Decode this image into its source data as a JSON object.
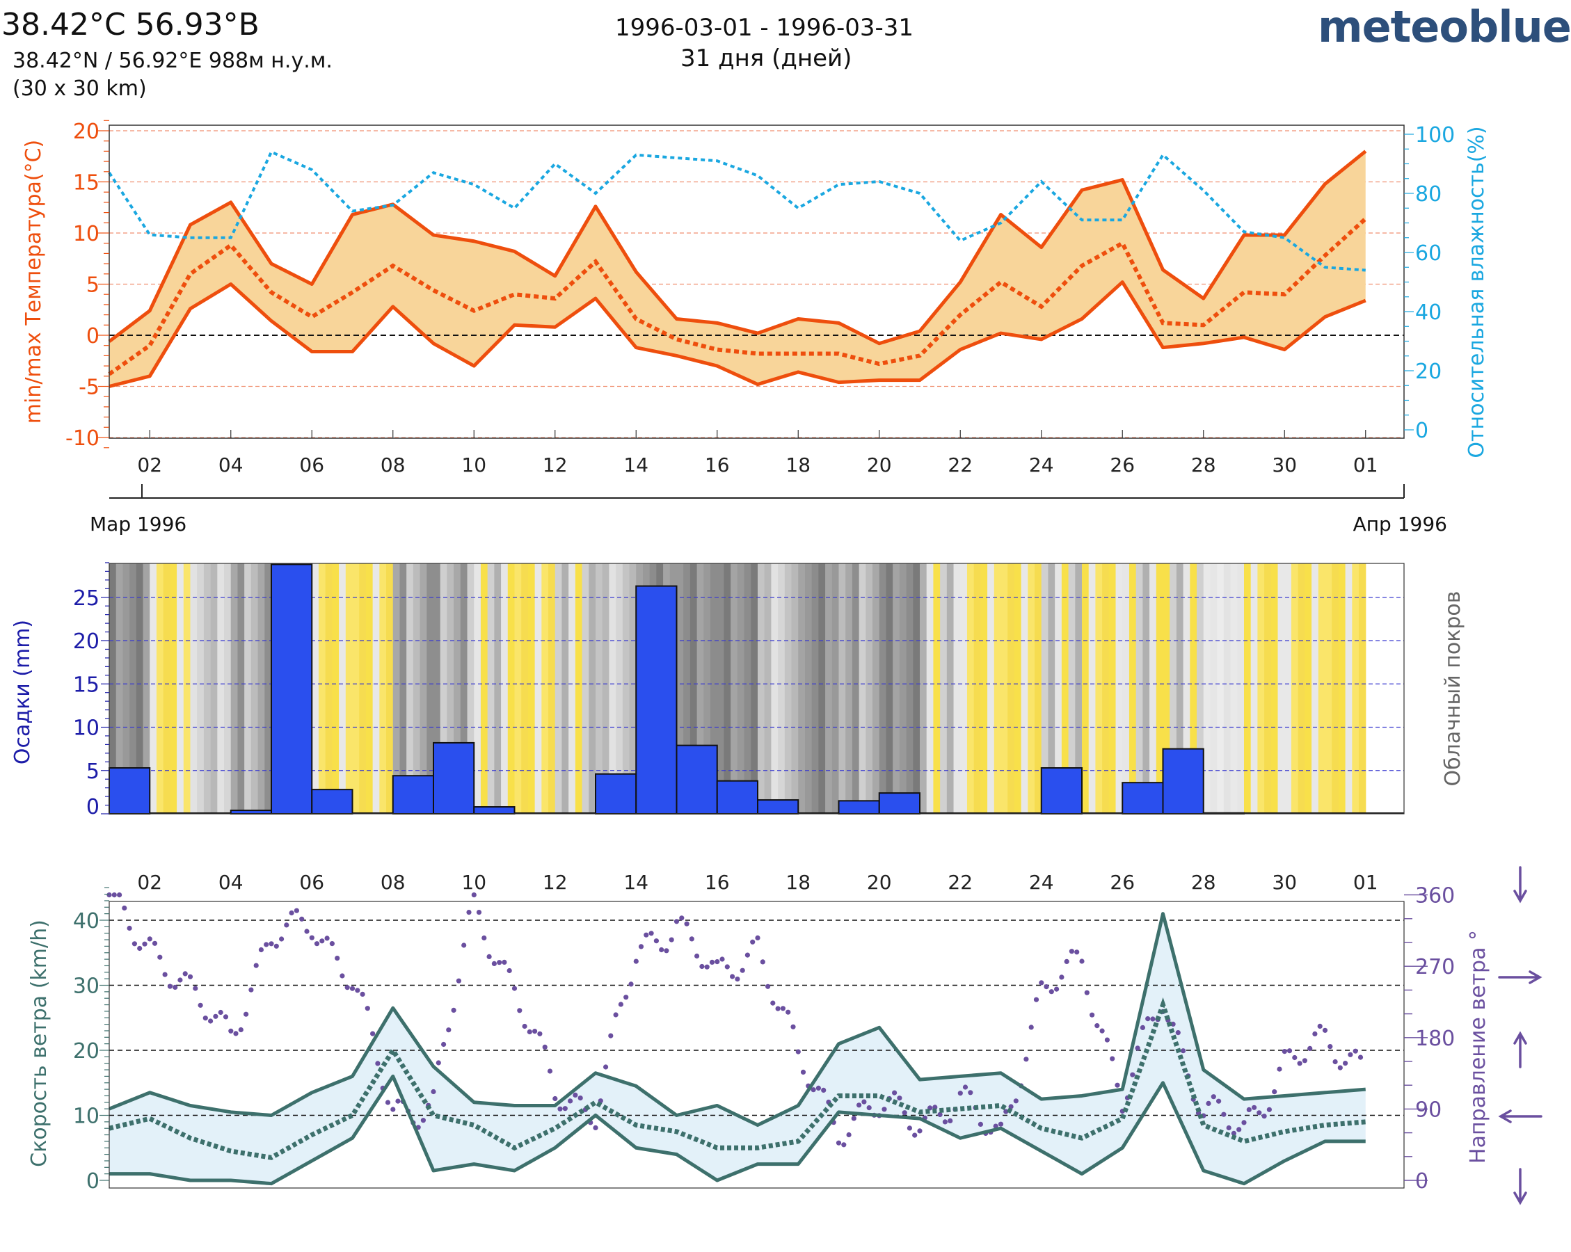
{
  "header": {
    "location": "38.42°C 56.93°B",
    "coords": "38.42°N / 56.92°E   988м н.у.м.",
    "grid": "(30 x 30 km)",
    "period": "1996-03-01 - 1996-03-31",
    "days": "31 дня (дней)",
    "brand": "meteoblue"
  },
  "colors": {
    "temperature": "#ee4e0d",
    "temperature_fill": "#f8d59a",
    "humidity": "#1aa7e0",
    "precipitation": "#2a4fee",
    "precip_axis": "#1c1ca8",
    "sun": "#f8e04a",
    "wind": "#3d706c",
    "wind_fill": "#e3f1f9",
    "wind_dir": "#6a4f9f",
    "cloud_axis": "#666666"
  },
  "x_axis": {
    "tick_labels": [
      "02",
      "04",
      "06",
      "08",
      "10",
      "12",
      "14",
      "16",
      "18",
      "20",
      "22",
      "24",
      "26",
      "28",
      "30",
      "01"
    ],
    "month_start": "Мар 1996",
    "month_end": "Апр 1996"
  },
  "chart_data": [
    {
      "type": "line",
      "title": "temperature and humidity",
      "ylabel": "min/max Температура(°C)",
      "ylabel_right": "Относительная влажность(%)",
      "ylim": [
        -10,
        20
      ],
      "ylim_right": [
        0,
        100
      ],
      "y_ticks": [
        -10,
        -5,
        0,
        5,
        10,
        15,
        20
      ],
      "y_ticks_right": [
        0,
        20,
        40,
        60,
        80,
        100
      ],
      "days": [
        1,
        2,
        3,
        4,
        5,
        6,
        7,
        8,
        9,
        10,
        11,
        12,
        13,
        14,
        15,
        16,
        17,
        18,
        19,
        20,
        21,
        22,
        23,
        24,
        25,
        26,
        27,
        28,
        29,
        30,
        31,
        32
      ],
      "series": [
        {
          "name": "Temperature max",
          "values": [
            -0.6,
            2.4,
            10.8,
            13.0,
            7.0,
            5.0,
            11.8,
            12.8,
            9.8,
            9.2,
            8.2,
            5.8,
            12.6,
            6.2,
            1.6,
            1.2,
            0.2,
            1.6,
            1.2,
            -0.8,
            0.4,
            5.2,
            11.8,
            8.6,
            14.2,
            15.2,
            6.4,
            3.6,
            9.8,
            9.8,
            14.8,
            18.0
          ]
        },
        {
          "name": "Temperature mean",
          "values": [
            -3.8,
            -1.0,
            6.0,
            8.8,
            4.2,
            1.8,
            4.2,
            6.8,
            4.4,
            2.4,
            4.0,
            3.6,
            7.2,
            1.6,
            -0.4,
            -1.4,
            -1.8,
            -1.8,
            -1.8,
            -2.8,
            -2.0,
            2.0,
            5.2,
            2.8,
            6.8,
            9.0,
            1.2,
            1.0,
            4.2,
            4.0,
            7.8,
            11.4
          ]
        },
        {
          "name": "Temperature min",
          "values": [
            -5.0,
            -4.0,
            2.6,
            5.0,
            1.4,
            -1.6,
            -1.6,
            2.8,
            -0.8,
            -3.0,
            1.0,
            0.8,
            3.6,
            -1.2,
            -2.0,
            -3.0,
            -4.8,
            -3.6,
            -4.6,
            -4.4,
            -4.4,
            -1.4,
            0.2,
            -0.4,
            1.6,
            5.2,
            -1.2,
            -0.8,
            -0.2,
            -1.4,
            1.8,
            3.4
          ]
        },
        {
          "name": "Relative humidity",
          "axis": "right",
          "values": [
            87,
            66,
            65,
            65,
            94,
            88,
            74,
            76,
            87,
            83,
            75,
            90,
            80,
            93,
            92,
            91,
            86,
            75,
            83,
            84,
            80,
            64,
            70,
            84,
            71,
            71,
            93,
            81,
            67,
            65,
            55,
            54
          ]
        }
      ]
    },
    {
      "type": "bar",
      "title": "precipitation and cloud cover",
      "ylabel": "Осадки (mm)",
      "ylabel_right": "Облачный покров",
      "ylim": [
        0,
        29
      ],
      "y_ticks": [
        0,
        5,
        10,
        15,
        20,
        25
      ],
      "categories": [
        "01",
        "02",
        "03",
        "04",
        "05",
        "06",
        "07",
        "08",
        "09",
        "10",
        "11",
        "12",
        "13",
        "14",
        "15",
        "16",
        "17",
        "18",
        "19",
        "20",
        "21",
        "22",
        "23",
        "24",
        "25",
        "26",
        "27",
        "28",
        "29",
        "30",
        "31"
      ],
      "values": [
        5.3,
        0,
        0,
        0.4,
        28.8,
        2.8,
        0,
        4.4,
        8.2,
        0.8,
        0,
        0,
        4.6,
        26.3,
        7.9,
        3.8,
        1.6,
        0,
        1.5,
        2.4,
        0,
        0,
        0,
        5.3,
        0,
        3.6,
        7.5,
        0.1,
        0,
        0,
        0
      ],
      "cloud_cover_daily_desc": [
        "overcast",
        "sunny",
        "partly cloudy",
        "cloudy",
        "cloudy",
        "sunny",
        "sunny",
        "cloudy",
        "cloudy",
        "mixed",
        "sunny",
        "mixed",
        "partly cloudy",
        "overcast",
        "overcast",
        "overcast",
        "partly cloudy",
        "overcast",
        "cloudy",
        "overcast",
        "mixed",
        "sunny",
        "sunny",
        "mixed",
        "sunny",
        "mixed",
        "mixed",
        "clear",
        "sunny",
        "sunny",
        "sunny"
      ]
    },
    {
      "type": "line",
      "title": "wind speed and direction",
      "ylabel": "Скорость ветра (km/h)",
      "ylabel_right": "Направление ветра °",
      "ylim": [
        0,
        45
      ],
      "y_ticks": [
        0,
        10,
        20,
        30,
        40
      ],
      "ylim_right": [
        0,
        360
      ],
      "y_ticks_right": [
        0,
        90,
        180,
        270,
        360
      ],
      "days": [
        1,
        2,
        3,
        4,
        5,
        6,
        7,
        8,
        9,
        10,
        11,
        12,
        13,
        14,
        15,
        16,
        17,
        18,
        19,
        20,
        21,
        22,
        23,
        24,
        25,
        26,
        27,
        28,
        29,
        30,
        31,
        32
      ],
      "series": [
        {
          "name": "Wind max",
          "values": [
            11,
            13.5,
            11.5,
            10.5,
            10,
            13.5,
            16,
            26.5,
            17.5,
            12,
            11.5,
            11.5,
            16.5,
            14.5,
            10,
            11.5,
            8.5,
            11.5,
            21,
            23.5,
            15.5,
            16,
            16.5,
            12.5,
            13,
            14,
            41,
            17,
            12.5,
            13,
            13.5,
            14
          ]
        },
        {
          "name": "Wind mean",
          "values": [
            8,
            9.5,
            6.5,
            4.5,
            3.5,
            7,
            10,
            20,
            10,
            8.5,
            5,
            8,
            12,
            8.5,
            7.5,
            5,
            5,
            6,
            13,
            13,
            10.5,
            11,
            11.5,
            8,
            6.5,
            9.5,
            27,
            8.5,
            6,
            7.5,
            8.5,
            9
          ]
        },
        {
          "name": "Wind min",
          "values": [
            1,
            1,
            0,
            0,
            -0.5,
            3,
            6.5,
            16,
            1.5,
            2.5,
            1.5,
            5,
            10,
            5,
            4,
            0,
            2.5,
            2.5,
            10.5,
            10,
            9.5,
            6.5,
            8,
            4.5,
            1,
            5,
            15,
            1.5,
            -0.5,
            3,
            6,
            6
          ]
        },
        {
          "name": "Wind direction",
          "axis": "right",
          "description": "hourly scatter of direction in degrees, 0–360"
        }
      ],
      "direction_arrows": [
        "down",
        "right",
        "up",
        "left",
        "down"
      ]
    }
  ]
}
